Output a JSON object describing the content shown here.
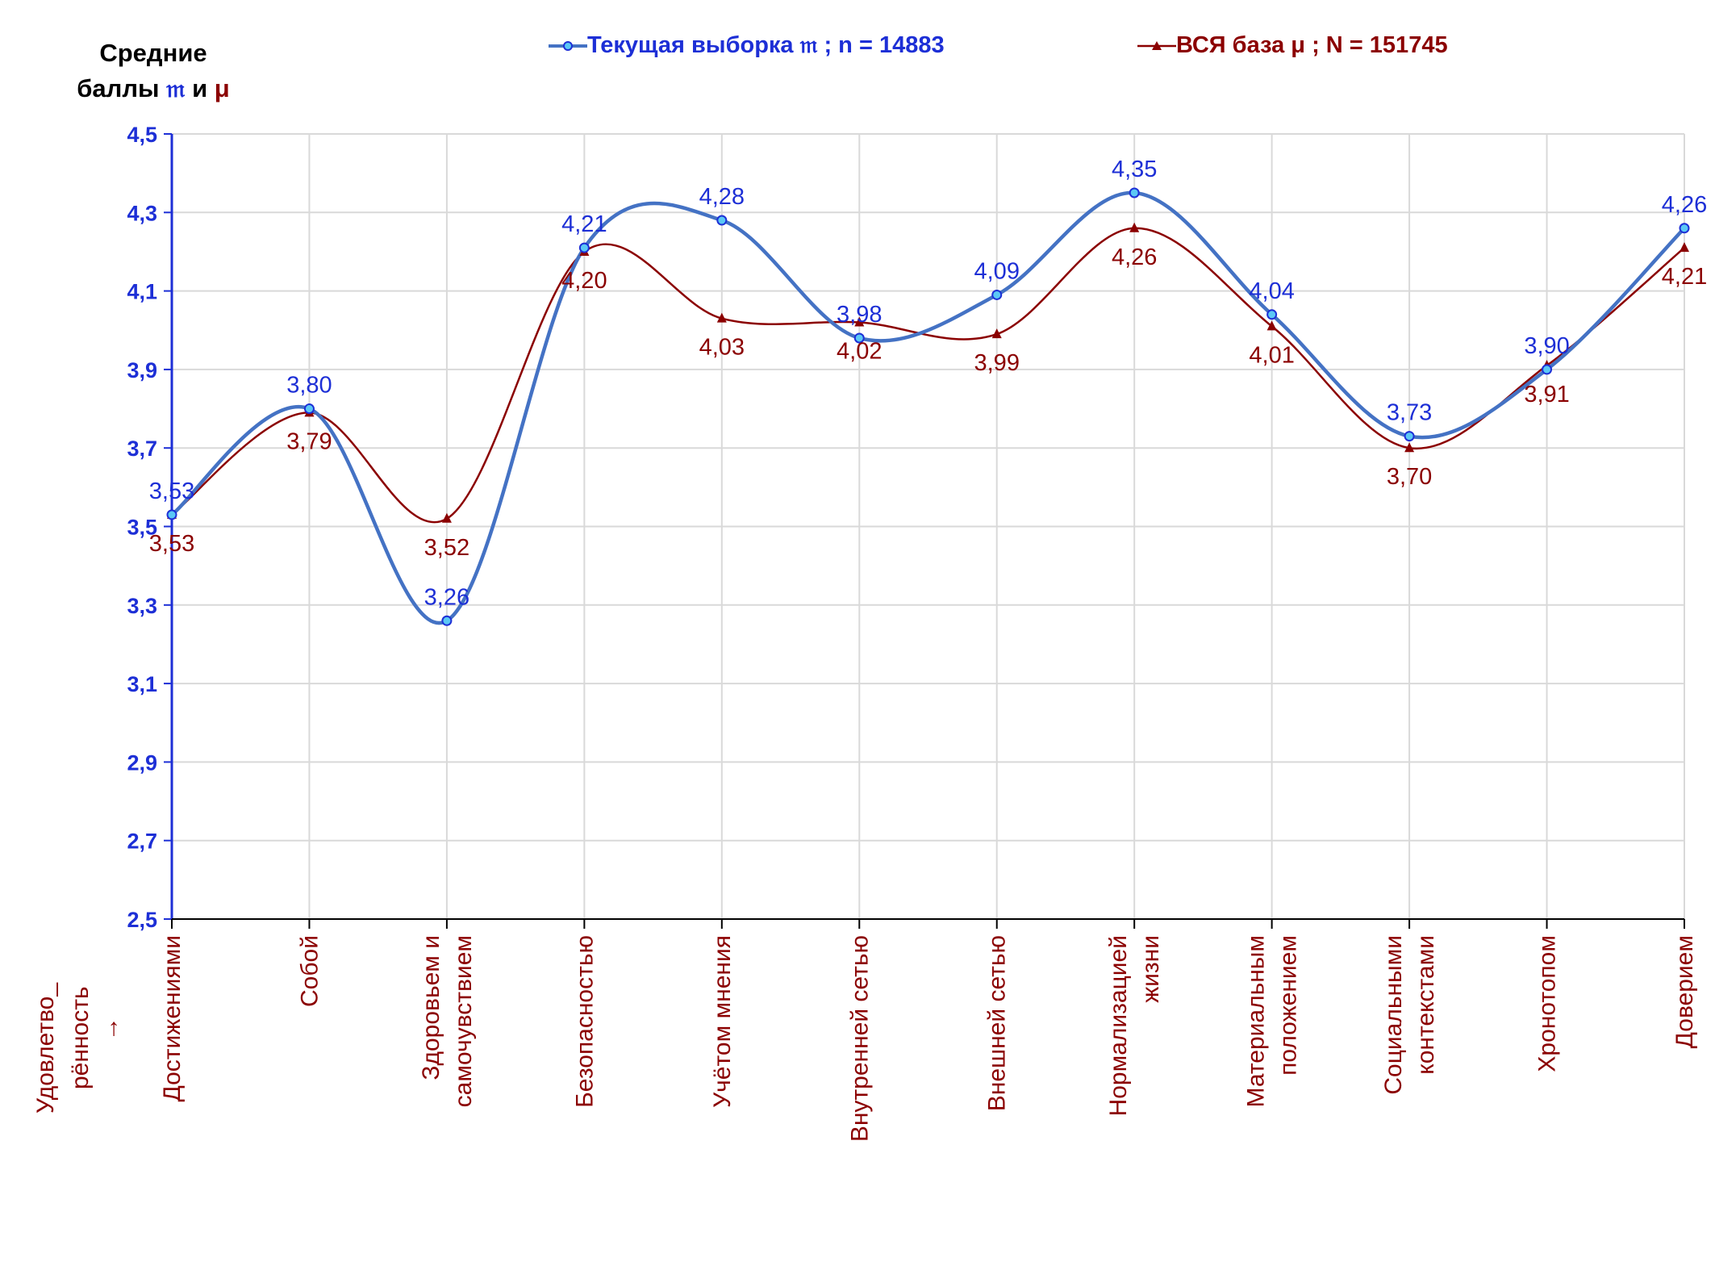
{
  "y_title": {
    "line1": "Средние",
    "line2_prefix": "баллы ",
    "sym_current": "𝔪",
    "connector": " и ",
    "sym_all": "μ"
  },
  "legend": {
    "current": "Текущая выборка 𝔪 ; n = 14883",
    "all": "ВСЯ база μ ; N = 151745"
  },
  "x_caption": [
    "Удовлетво_",
    "рённость",
    "→"
  ],
  "colors": {
    "current": "#4472c4",
    "current_label": "#1d2fd6",
    "all": "#8b0000",
    "grid": "#d9d9d9",
    "axis": "#1d2fd6"
  },
  "chart_data": {
    "type": "line",
    "title": "",
    "ylabel": "Средние баллы 𝔪 и μ",
    "xlabel": "Удовлетво_рённость →",
    "ylim": [
      2.5,
      4.5
    ],
    "y_ticks": [
      "2,5",
      "2,7",
      "2,9",
      "3,1",
      "3,3",
      "3,5",
      "3,7",
      "3,9",
      "4,1",
      "4,3",
      "4,5"
    ],
    "grid": true,
    "legend_position": "top",
    "smoothed": true,
    "categories": [
      [
        "Достижениями"
      ],
      [
        "Собой"
      ],
      [
        "Здоровьем и",
        "самочувствием"
      ],
      [
        "Безопасностью"
      ],
      [
        "Учётом мнения"
      ],
      [
        "Внутренней сетью"
      ],
      [
        "Внешней сетью"
      ],
      [
        "Нормализацией",
        "жизни"
      ],
      [
        "Материальным",
        "положением"
      ],
      [
        "Социальными",
        "контекстами"
      ],
      [
        "Хронотопом"
      ],
      [
        "Доверием"
      ]
    ],
    "series": [
      {
        "name": "Текущая выборка 𝔪 ; n = 14883",
        "marker": "circle",
        "values": [
          3.53,
          3.8,
          3.26,
          4.21,
          4.28,
          3.98,
          4.09,
          4.35,
          4.04,
          3.73,
          3.9,
          4.26
        ],
        "labels": [
          "3,53",
          "3,80",
          "3,26",
          "4,21",
          "4,28",
          "3,98",
          "4,09",
          "4,35",
          "4,04",
          "3,73",
          "3,90",
          "4,26"
        ]
      },
      {
        "name": "ВСЯ база μ ; N = 151745",
        "marker": "triangle",
        "values": [
          3.53,
          3.79,
          3.52,
          4.2,
          4.03,
          4.02,
          3.99,
          4.26,
          4.01,
          3.7,
          3.91,
          4.21
        ],
        "labels": [
          "3,53",
          "3,79",
          "3,52",
          "4,20",
          "4,03",
          "4,02",
          "3,99",
          "4,26",
          "4,01",
          "3,70",
          "3,91",
          "4,21"
        ]
      }
    ]
  }
}
